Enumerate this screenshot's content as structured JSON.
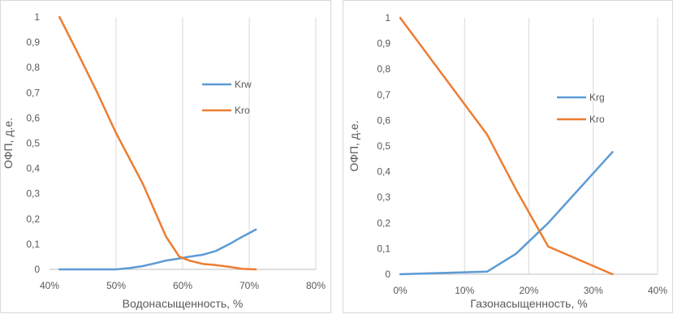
{
  "chart_data": [
    {
      "type": "line",
      "xlabel": "Водонасыщенность, %",
      "ylabel": "ОФП, д.е.",
      "xlim": [
        40,
        80
      ],
      "ylim": [
        0,
        1
      ],
      "x_ticks": [
        "40%",
        "50%",
        "60%",
        "70%",
        "80%"
      ],
      "y_ticks": [
        "0",
        "0,1",
        "0,2",
        "0,3",
        "0,4",
        "0,5",
        "0,6",
        "0,7",
        "0,8",
        "0,9",
        "1"
      ],
      "grid": "vertical",
      "legend_position": "right",
      "series": [
        {
          "name": "Krw",
          "color": "#5b9bd5",
          "x": [
            41.5,
            44,
            47,
            50,
            52,
            54,
            56,
            57.5,
            59.5,
            61,
            63,
            65,
            67,
            69,
            71
          ],
          "y": [
            0,
            0,
            0,
            0,
            0.005,
            0.013,
            0.025,
            0.035,
            0.043,
            0.05,
            0.058,
            0.073,
            0.1,
            0.13,
            0.158
          ]
        },
        {
          "name": "Kro",
          "color": "#ed7d31",
          "x": [
            41.5,
            44,
            47,
            50,
            52,
            54,
            56,
            57.5,
            59.5,
            61,
            63,
            65,
            67,
            69,
            71
          ],
          "y": [
            1,
            0.87,
            0.71,
            0.54,
            0.44,
            0.34,
            0.22,
            0.13,
            0.05,
            0.035,
            0.022,
            0.017,
            0.01,
            0.002,
            0
          ]
        }
      ]
    },
    {
      "type": "line",
      "xlabel": "Газонасыщенность, %",
      "ylabel": "ОФП, д.е.",
      "xlim": [
        0,
        40
      ],
      "ylim": [
        0,
        1
      ],
      "x_ticks": [
        "0%",
        "10%",
        "20%",
        "30%",
        "40%"
      ],
      "y_ticks": [
        "0",
        "0,1",
        "0,2",
        "0,3",
        "0,4",
        "0,5",
        "0,6",
        "0,7",
        "0,8",
        "0,9",
        "1"
      ],
      "grid": "vertical",
      "legend_position": "right",
      "series": [
        {
          "name": "Krg",
          "color": "#5b9bd5",
          "x": [
            0,
            13.5,
            18,
            23,
            33
          ],
          "y": [
            0,
            0.01,
            0.08,
            0.2,
            0.477
          ]
        },
        {
          "name": "Kro",
          "color": "#ed7d31",
          "x": [
            0,
            13.5,
            18,
            23,
            33
          ],
          "y": [
            1,
            0.545,
            0.33,
            0.108,
            0
          ]
        }
      ]
    }
  ]
}
